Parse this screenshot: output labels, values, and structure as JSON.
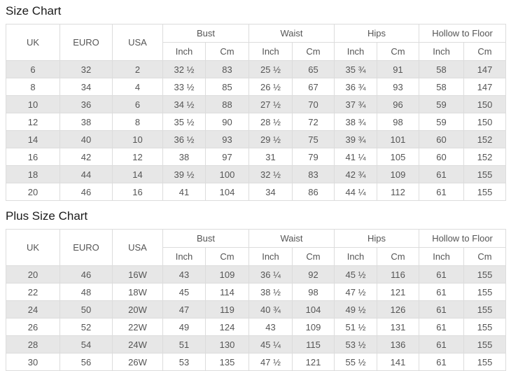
{
  "colors": {
    "stripe_row": "#e7e7e7",
    "table_border": "#dcdcdc",
    "cell_text": "#555555",
    "title_text": "#1b1b1b",
    "background": "#ffffff"
  },
  "size_chart": {
    "title": "Size Chart",
    "header": {
      "single_columns": [
        "UK",
        "EURO",
        "USA"
      ],
      "group_columns": [
        "Bust",
        "Waist",
        "Hips",
        "Hollow to Floor"
      ],
      "sub_columns": [
        "Inch",
        "Cm"
      ]
    },
    "rows": [
      [
        "6",
        "32",
        "2",
        "32 ½",
        "83",
        "25 ½",
        "65",
        "35 ¾",
        "91",
        "58",
        "147"
      ],
      [
        "8",
        "34",
        "4",
        "33 ½",
        "85",
        "26 ½",
        "67",
        "36 ¾",
        "93",
        "58",
        "147"
      ],
      [
        "10",
        "36",
        "6",
        "34 ½",
        "88",
        "27 ½",
        "70",
        "37 ¾",
        "96",
        "59",
        "150"
      ],
      [
        "12",
        "38",
        "8",
        "35 ½",
        "90",
        "28 ½",
        "72",
        "38 ¾",
        "98",
        "59",
        "150"
      ],
      [
        "14",
        "40",
        "10",
        "36 ½",
        "93",
        "29 ½",
        "75",
        "39 ¾",
        "101",
        "60",
        "152"
      ],
      [
        "16",
        "42",
        "12",
        "38",
        "97",
        "31",
        "79",
        "41 ¼",
        "105",
        "60",
        "152"
      ],
      [
        "18",
        "44",
        "14",
        "39 ½",
        "100",
        "32 ½",
        "83",
        "42 ¾",
        "109",
        "61",
        "155"
      ],
      [
        "20",
        "46",
        "16",
        "41",
        "104",
        "34",
        "86",
        "44 ¼",
        "112",
        "61",
        "155"
      ]
    ]
  },
  "plus_size_chart": {
    "title": "Plus Size Chart",
    "header": {
      "single_columns": [
        "UK",
        "EURO",
        "USA"
      ],
      "group_columns": [
        "Bust",
        "Waist",
        "Hips",
        "Hollow to Floor"
      ],
      "sub_columns": [
        "Inch",
        "Cm"
      ]
    },
    "rows": [
      [
        "20",
        "46",
        "16W",
        "43",
        "109",
        "36 ¼",
        "92",
        "45 ½",
        "116",
        "61",
        "155"
      ],
      [
        "22",
        "48",
        "18W",
        "45",
        "114",
        "38 ½",
        "98",
        "47 ½",
        "121",
        "61",
        "155"
      ],
      [
        "24",
        "50",
        "20W",
        "47",
        "119",
        "40 ¾",
        "104",
        "49 ½",
        "126",
        "61",
        "155"
      ],
      [
        "26",
        "52",
        "22W",
        "49",
        "124",
        "43",
        "109",
        "51 ½",
        "131",
        "61",
        "155"
      ],
      [
        "28",
        "54",
        "24W",
        "51",
        "130",
        "45 ¼",
        "115",
        "53 ½",
        "136",
        "61",
        "155"
      ],
      [
        "30",
        "56",
        "26W",
        "53",
        "135",
        "47 ½",
        "121",
        "55 ½",
        "141",
        "61",
        "155"
      ]
    ]
  }
}
